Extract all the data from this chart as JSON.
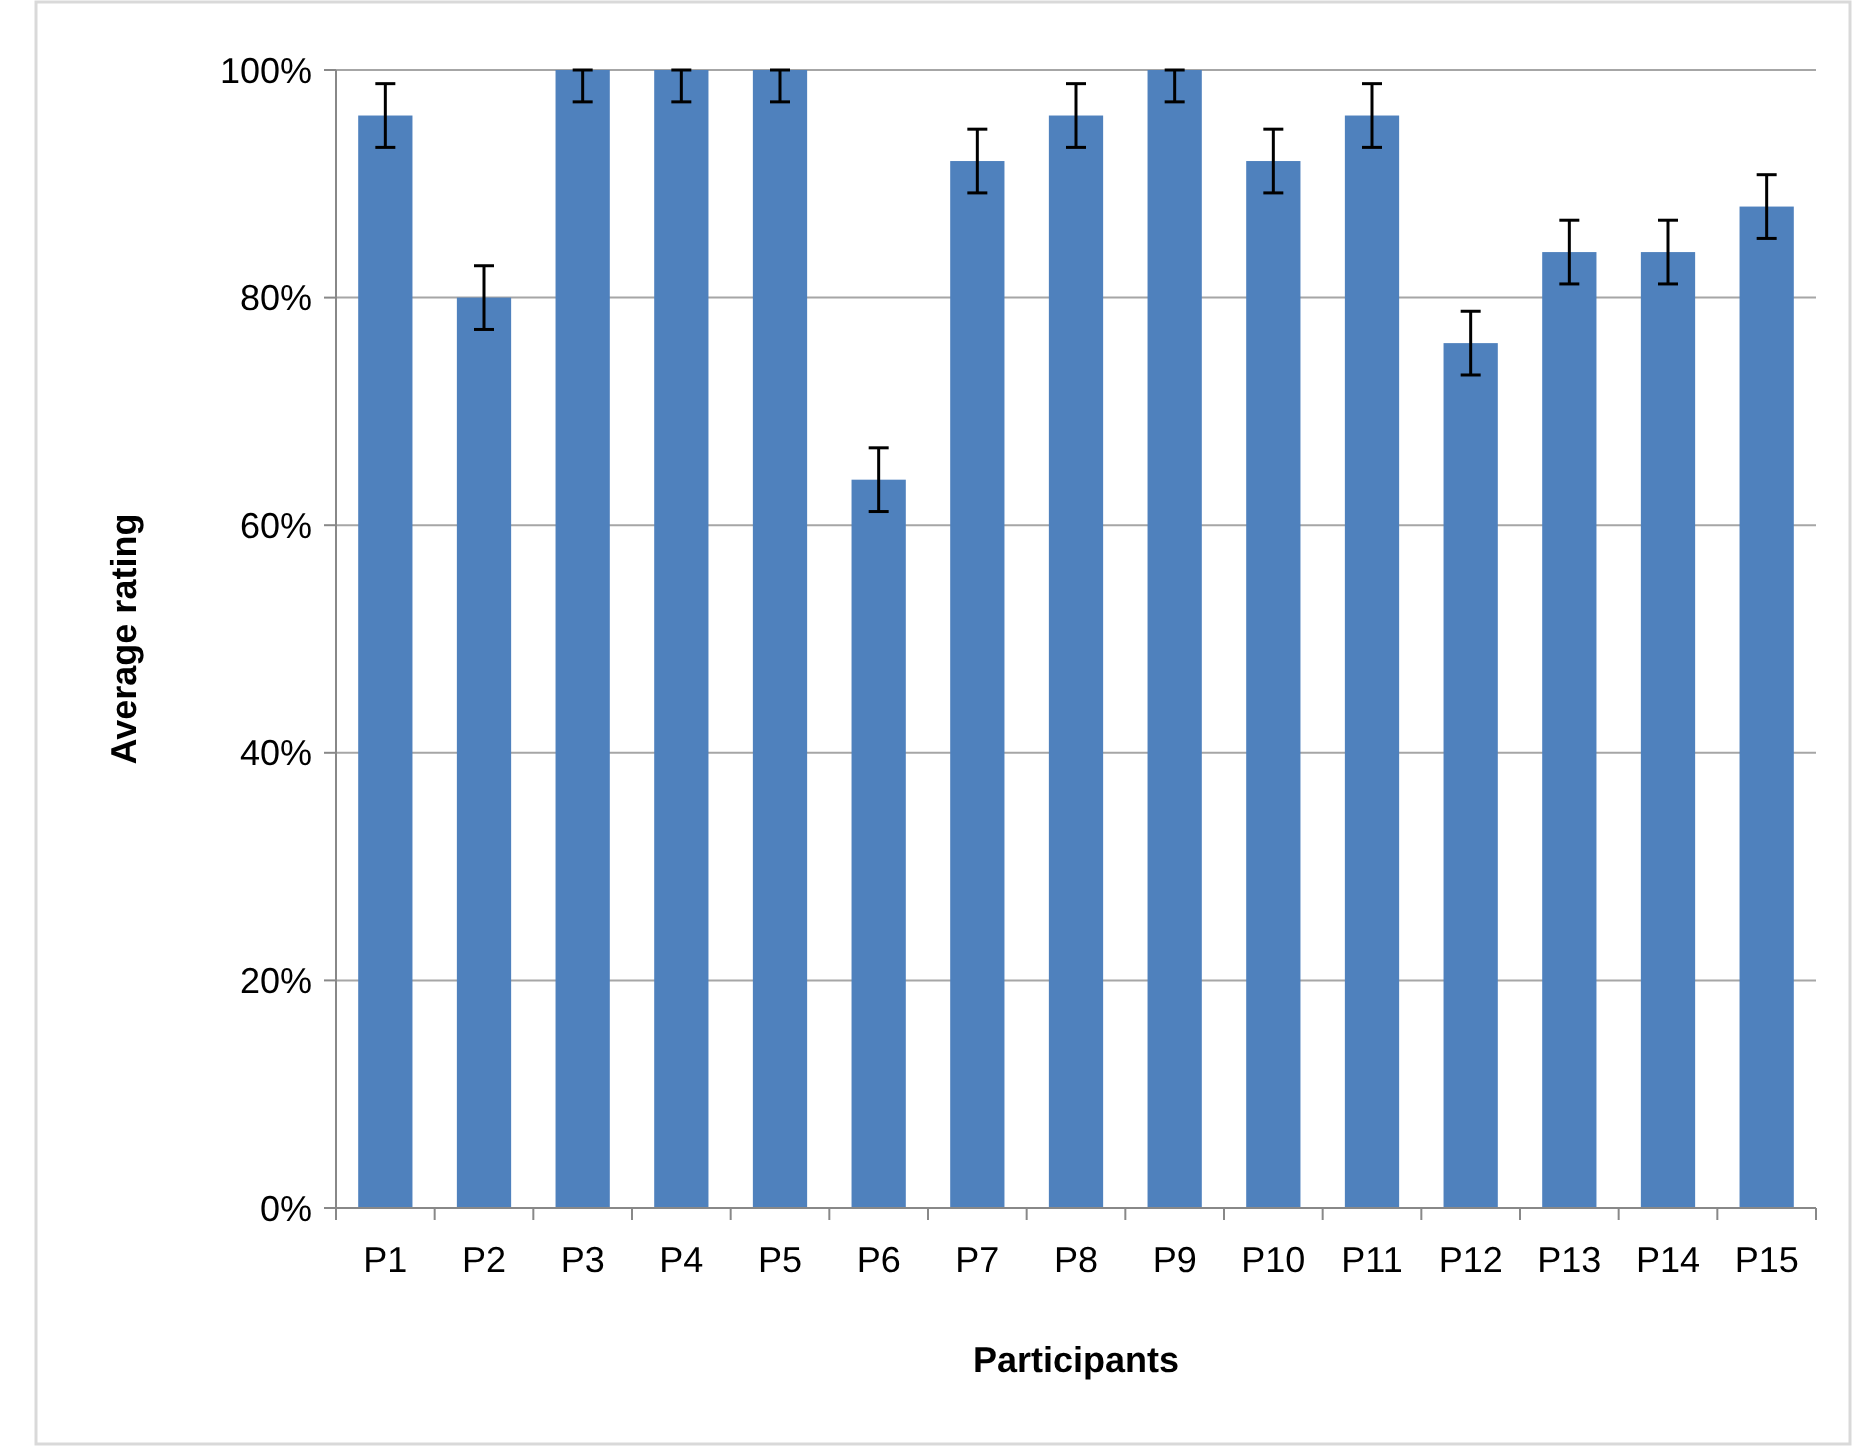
{
  "chart_data": {
    "type": "bar",
    "xlabel": "Participants",
    "ylabel": "Average rating",
    "categories": [
      "P1",
      "P2",
      "P3",
      "P4",
      "P5",
      "P6",
      "P7",
      "P8",
      "P9",
      "P10",
      "P11",
      "P12",
      "P13",
      "P14",
      "P15"
    ],
    "values": [
      96,
      80,
      100,
      100,
      100,
      64,
      92,
      96,
      100,
      92,
      96,
      76,
      84,
      84,
      88
    ],
    "errors": [
      2.8,
      2.8,
      [
        97.2,
        100
      ],
      [
        97.2,
        100
      ],
      [
        97.2,
        100
      ],
      2.8,
      2.8,
      2.8,
      [
        97.2,
        100
      ],
      2.8,
      2.8,
      2.8,
      2.8,
      2.8,
      2.8
    ],
    "color": "#4f81bd",
    "ylim": [
      0,
      100
    ],
    "yticks": [
      {
        "value": 0,
        "label": "0%"
      },
      {
        "value": 20,
        "label": "20%"
      },
      {
        "value": 40,
        "label": "40%"
      },
      {
        "value": 60,
        "label": "60%"
      },
      {
        "value": 80,
        "label": "80%"
      },
      {
        "value": 100,
        "label": "100%"
      }
    ],
    "grid": "y"
  }
}
